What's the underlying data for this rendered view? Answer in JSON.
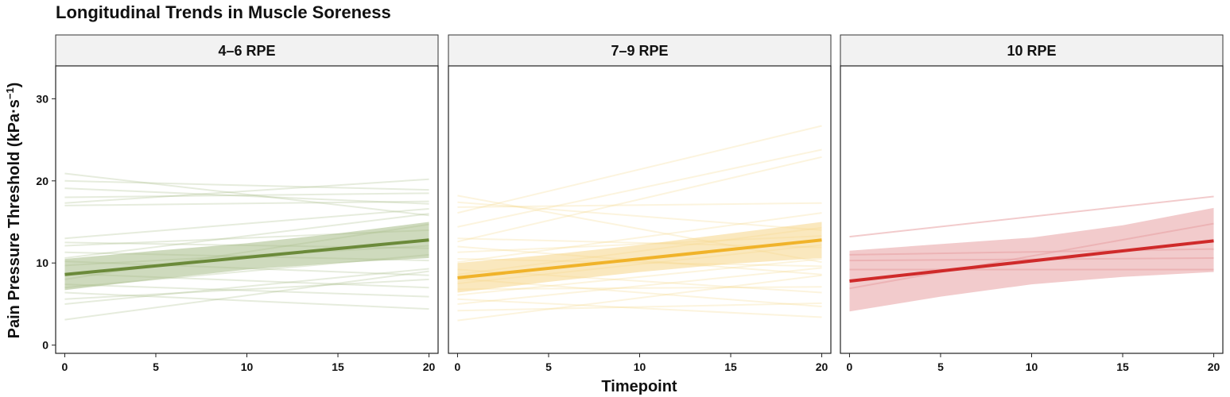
{
  "chart_data": {
    "type": "line",
    "title": "Longitudinal Trends in Muscle Soreness",
    "xlabel": "Timepoint",
    "ylabel": "Pain Pressure Threshold (kPa·s",
    "ylabel_superscript": "−1",
    "ylabel_suffix": ")",
    "xlim": [
      -0.5,
      20.5
    ],
    "ylim": [
      -1,
      34
    ],
    "x_ticks": [
      0,
      5,
      10,
      15,
      20
    ],
    "y_ticks": [
      0,
      10,
      20,
      30
    ],
    "grid": false,
    "legend": "none",
    "panels": [
      {
        "label": "4–6 RPE",
        "color": "#6b8a3a",
        "ribbon_color": "#a6bb86",
        "trend": {
          "x": [
            0,
            20
          ],
          "y": [
            8.6,
            12.8
          ]
        },
        "ribbon": {
          "x": [
            0,
            5,
            10,
            15,
            20
          ],
          "lower": [
            6.7,
            8.0,
            9.2,
            10.0,
            10.6
          ],
          "upper": [
            10.5,
            11.5,
            12.4,
            13.6,
            15.0
          ]
        },
        "subjects": [
          [
            3.1,
            9.0
          ],
          [
            5.0,
            9.3
          ],
          [
            5.6,
            8.0
          ],
          [
            6.4,
            4.4
          ],
          [
            7.0,
            11.0
          ],
          [
            7.4,
            5.9
          ],
          [
            8.0,
            14.7
          ],
          [
            8.7,
            7.0
          ],
          [
            9.7,
            12.1
          ],
          [
            10.2,
            8.5
          ],
          [
            10.6,
            16.0
          ],
          [
            11.3,
            10.3
          ],
          [
            12.1,
            14.0
          ],
          [
            12.5,
            11.8
          ],
          [
            13.0,
            16.6
          ],
          [
            17.0,
            17.5
          ],
          [
            18.0,
            18.5
          ],
          [
            19.1,
            17.2
          ],
          [
            20.0,
            18.9
          ],
          [
            20.9,
            15.8
          ],
          [
            17.3,
            20.2
          ]
        ]
      },
      {
        "label": "7–9 RPE",
        "color": "#f0b32a",
        "ribbon_color": "#f6d688",
        "trend": {
          "x": [
            0,
            20
          ],
          "y": [
            8.2,
            12.8
          ]
        },
        "ribbon": {
          "x": [
            0,
            5,
            10,
            15,
            20
          ],
          "lower": [
            6.4,
            7.7,
            8.9,
            9.9,
            10.6
          ],
          "upper": [
            10.0,
            11.0,
            12.2,
            13.6,
            15.0
          ]
        },
        "subjects": [
          [
            3.0,
            8.5
          ],
          [
            4.2,
            5.1
          ],
          [
            5.0,
            9.4
          ],
          [
            5.6,
            3.4
          ],
          [
            6.1,
            10.5
          ],
          [
            6.8,
            7.1
          ],
          [
            7.5,
            12.2
          ],
          [
            8.1,
            4.7
          ],
          [
            8.6,
            14.3
          ],
          [
            9.2,
            6.4
          ],
          [
            10.1,
            16.1
          ],
          [
            10.5,
            9.6
          ],
          [
            11.3,
            13.3
          ],
          [
            12.0,
            8.6
          ],
          [
            12.6,
            22.9
          ],
          [
            13.0,
            11.9
          ],
          [
            14.4,
            23.8
          ],
          [
            16.1,
            26.7
          ],
          [
            16.8,
            17.3
          ],
          [
            17.4,
            14.0
          ],
          [
            18.2,
            10.1
          ]
        ]
      },
      {
        "label": "10 RPE",
        "color": "#cf2a2a",
        "ribbon_color": "#e7a0a3",
        "trend": {
          "x": [
            0,
            20
          ],
          "y": [
            7.8,
            12.7
          ]
        },
        "ribbon": {
          "x": [
            0,
            5,
            10,
            15,
            20
          ],
          "lower": [
            4.1,
            5.9,
            7.4,
            8.3,
            8.9
          ],
          "upper": [
            11.5,
            12.3,
            13.1,
            14.6,
            16.7
          ]
        },
        "subjects": [
          [
            6.9,
            14.8
          ],
          [
            9.2,
            9.2
          ],
          [
            10.3,
            10.6
          ],
          [
            11.0,
            11.7
          ],
          [
            13.2,
            18.1
          ]
        ]
      }
    ]
  }
}
